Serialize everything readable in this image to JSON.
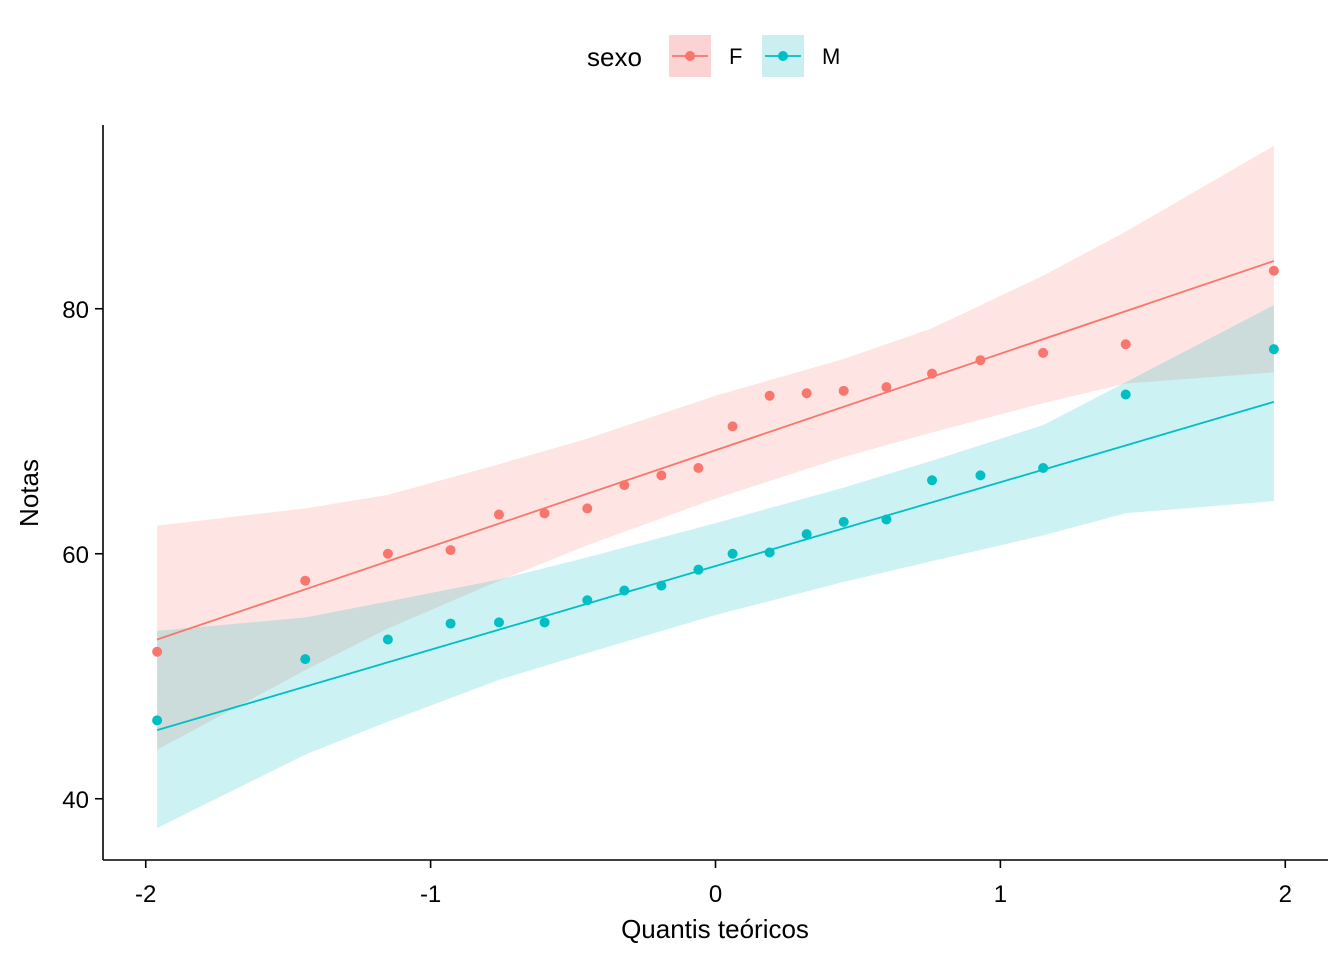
{
  "chart_data": {
    "type": "scatter",
    "title": "",
    "xlabel": "Quantis teóricos",
    "ylabel": "Notas",
    "xlim": [
      -2.15,
      2.15
    ],
    "ylim": [
      35,
      95
    ],
    "xticks": [
      -2,
      -1,
      0,
      1,
      2
    ],
    "xtick_labels": [
      "-2",
      "-1",
      "0",
      "1",
      "2"
    ],
    "yticks": [
      40,
      60,
      80
    ],
    "ytick_labels": [
      "40",
      "60",
      "80"
    ],
    "grid": false,
    "legend": {
      "title": "sexo",
      "position": "top"
    },
    "series": [
      {
        "name": "F",
        "color": "#F8766D",
        "band_color": "#FBD3D3",
        "points": [
          [
            -1.96,
            52.0
          ],
          [
            -1.44,
            57.8
          ],
          [
            -1.15,
            60.0
          ],
          [
            -0.93,
            60.3
          ],
          [
            -0.76,
            63.2
          ],
          [
            -0.6,
            63.3
          ],
          [
            -0.45,
            63.7
          ],
          [
            -0.32,
            65.6
          ],
          [
            -0.19,
            66.4
          ],
          [
            -0.06,
            67.0
          ],
          [
            0.06,
            70.4
          ],
          [
            0.19,
            72.9
          ],
          [
            0.32,
            73.1
          ],
          [
            0.45,
            73.3
          ],
          [
            0.6,
            73.6
          ],
          [
            0.76,
            74.7
          ],
          [
            0.93,
            75.8
          ],
          [
            1.15,
            76.4
          ],
          [
            1.44,
            77.1
          ],
          [
            1.96,
            83.1
          ]
        ],
        "fit_line": [
          [
            -1.96,
            53.0
          ],
          [
            1.96,
            83.9
          ]
        ],
        "band": [
          [
            -1.96,
            44.0,
            62.3
          ],
          [
            -1.44,
            50.5,
            63.7
          ],
          [
            -1.15,
            53.9,
            64.8
          ],
          [
            -0.76,
            57.8,
            67.3
          ],
          [
            -0.45,
            60.7,
            69.4
          ],
          [
            0.0,
            64.5,
            72.9
          ],
          [
            0.45,
            67.9,
            75.9
          ],
          [
            0.76,
            69.9,
            78.4
          ],
          [
            1.15,
            72.3,
            82.7
          ],
          [
            1.44,
            73.9,
            86.3
          ],
          [
            1.96,
            74.8,
            93.3
          ]
        ]
      },
      {
        "name": "M",
        "color": "#00BFC4",
        "band_color": "#C9EFF1",
        "points": [
          [
            -1.96,
            46.4
          ],
          [
            -1.44,
            51.4
          ],
          [
            -1.15,
            53.0
          ],
          [
            -0.93,
            54.3
          ],
          [
            -0.76,
            54.4
          ],
          [
            -0.6,
            54.4
          ],
          [
            -0.45,
            56.2
          ],
          [
            -0.32,
            57.0
          ],
          [
            -0.19,
            57.4
          ],
          [
            -0.06,
            58.7
          ],
          [
            0.06,
            60.0
          ],
          [
            0.19,
            60.1
          ],
          [
            0.32,
            61.6
          ],
          [
            0.45,
            62.6
          ],
          [
            0.6,
            62.8
          ],
          [
            0.76,
            66.0
          ],
          [
            0.93,
            66.4
          ],
          [
            1.15,
            67.0
          ],
          [
            1.44,
            73.0
          ],
          [
            1.96,
            76.7
          ]
        ],
        "fit_line": [
          [
            -1.96,
            45.6
          ],
          [
            1.96,
            72.4
          ]
        ],
        "band": [
          [
            -1.96,
            37.6,
            53.7
          ],
          [
            -1.44,
            43.6,
            54.8
          ],
          [
            -1.15,
            46.3,
            56.1
          ],
          [
            -0.76,
            49.7,
            57.9
          ],
          [
            -0.45,
            51.9,
            59.7
          ],
          [
            0.0,
            55.0,
            62.5
          ],
          [
            0.45,
            57.7,
            65.4
          ],
          [
            0.76,
            59.4,
            67.6
          ],
          [
            1.15,
            61.5,
            70.5
          ],
          [
            1.44,
            63.3,
            74.0
          ],
          [
            1.96,
            64.3,
            80.3
          ]
        ]
      }
    ]
  }
}
